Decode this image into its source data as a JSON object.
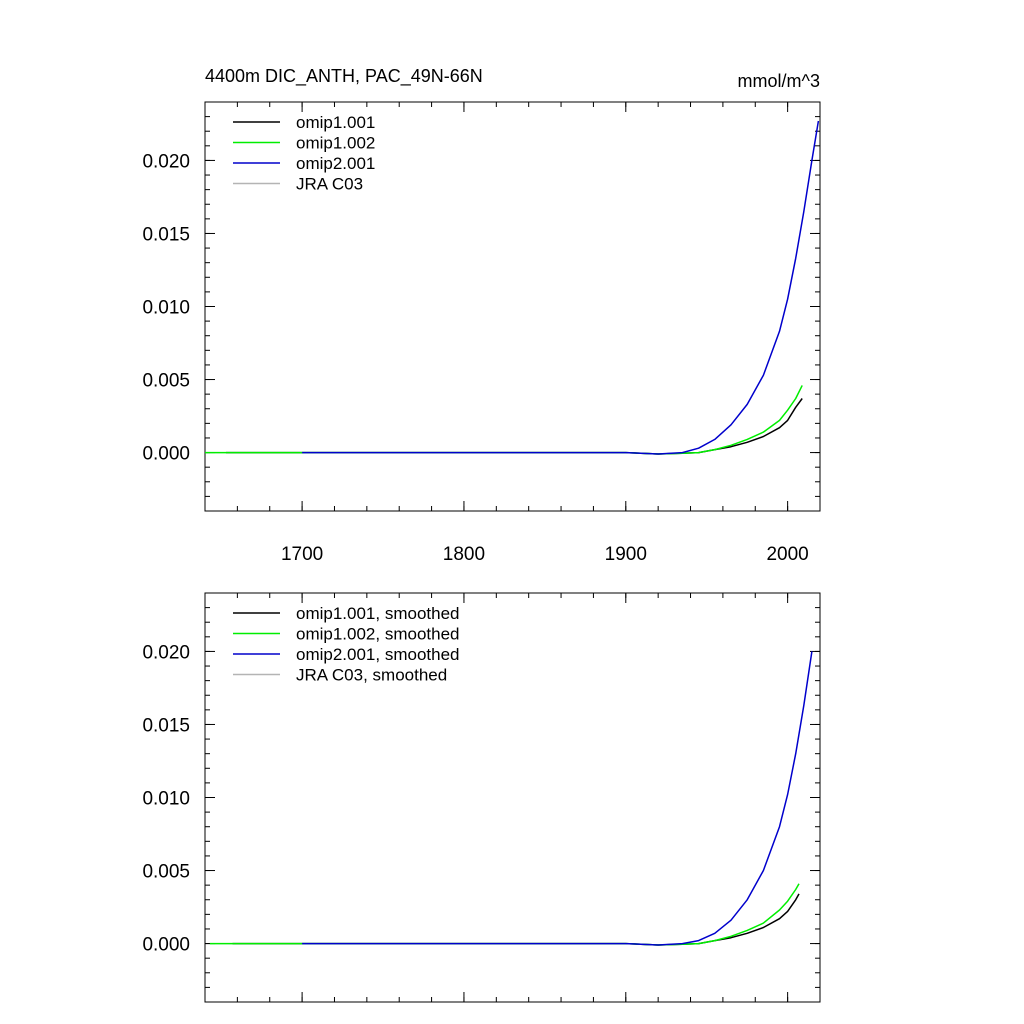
{
  "figure": {
    "title_left": "4400m DIC_ANTH, PAC_49N-66N",
    "title_right": "mmol/m^3"
  },
  "colors": {
    "omip1_001": "#000000",
    "omip1_002": "#00ee00",
    "omip2_001": "#0000cc",
    "jra_c03": "#b4b4b4"
  },
  "chart_data": [
    {
      "type": "line",
      "title": "4400m DIC_ANTH, PAC_49N-66N",
      "units": "mmol/m^3",
      "xlim": [
        1640,
        2020
      ],
      "ylim": [
        -0.004,
        0.024
      ],
      "x_ticks": [
        1700,
        1800,
        1900,
        2000
      ],
      "x_tick_labels": [
        "1700",
        "1800",
        "1900",
        "2000"
      ],
      "y_ticks": [
        0.0,
        0.005,
        0.01,
        0.015,
        0.02
      ],
      "y_tick_labels": [
        "0.000",
        "0.005",
        "0.010",
        "0.015",
        "0.020"
      ],
      "legend_position": "top-left",
      "series": [
        {
          "name": "omip1.001",
          "color_key": "omip1_001",
          "x": [
            1653,
            1700,
            1800,
            1900,
            1920,
            1935,
            1945,
            1955,
            1965,
            1975,
            1985,
            1995,
            2000,
            2005,
            2009
          ],
          "y": [
            0.0,
            0.0,
            0.0,
            0.0,
            -0.0001,
            -5e-05,
            0.0,
            0.0002,
            0.0004,
            0.0007,
            0.0011,
            0.0017,
            0.0022,
            0.0031,
            0.0037
          ]
        },
        {
          "name": "omip1.002",
          "color_key": "omip1_002",
          "x": [
            1640,
            1700,
            1800,
            1900,
            1920,
            1935,
            1945,
            1955,
            1965,
            1975,
            1985,
            1995,
            2000,
            2005,
            2009
          ],
          "y": [
            0.0,
            0.0,
            0.0,
            0.0,
            -0.0001,
            -5e-05,
            0.0,
            0.0002,
            0.0005,
            0.0009,
            0.0014,
            0.0022,
            0.0029,
            0.0037,
            0.0046
          ]
        },
        {
          "name": "omip2.001",
          "color_key": "omip2_001",
          "x": [
            1700,
            1800,
            1900,
            1920,
            1935,
            1945,
            1955,
            1965,
            1975,
            1985,
            1995,
            2000,
            2005,
            2010,
            2015,
            2019
          ],
          "y": [
            0.0,
            0.0,
            0.0,
            -0.0001,
            0.0,
            0.0003,
            0.0009,
            0.0019,
            0.0033,
            0.0053,
            0.0083,
            0.0105,
            0.0133,
            0.0165,
            0.02,
            0.0227
          ]
        },
        {
          "name": "JRA C03",
          "color_key": "jra_c03",
          "x": [],
          "y": []
        }
      ]
    },
    {
      "type": "line",
      "xlim": [
        1640,
        2020
      ],
      "ylim": [
        -0.004,
        0.024
      ],
      "x_ticks": [
        1700,
        1800,
        1900,
        2000
      ],
      "y_ticks": [
        0.0,
        0.005,
        0.01,
        0.015,
        0.02
      ],
      "y_tick_labels": [
        "0.000",
        "0.005",
        "0.010",
        "0.015",
        "0.020"
      ],
      "legend_position": "top-left",
      "series": [
        {
          "name": "omip1.001, smoothed",
          "color_key": "omip1_001",
          "x": [
            1657,
            1700,
            1800,
            1900,
            1920,
            1935,
            1945,
            1955,
            1965,
            1975,
            1985,
            1995,
            2000,
            2005,
            2007
          ],
          "y": [
            0.0,
            0.0,
            0.0,
            0.0,
            -0.0001,
            -5e-05,
            0.0,
            0.0002,
            0.0004,
            0.0007,
            0.0011,
            0.0017,
            0.0022,
            0.003,
            0.0034
          ]
        },
        {
          "name": "omip1.002, smoothed",
          "color_key": "omip1_002",
          "x": [
            1643,
            1700,
            1800,
            1900,
            1920,
            1935,
            1945,
            1955,
            1965,
            1975,
            1985,
            1995,
            2000,
            2005,
            2007
          ],
          "y": [
            0.0,
            0.0,
            0.0,
            0.0,
            -0.0001,
            -5e-05,
            0.0,
            0.0002,
            0.0005,
            0.0009,
            0.0014,
            0.0023,
            0.0029,
            0.0037,
            0.0041
          ]
        },
        {
          "name": "omip2.001, smoothed",
          "color_key": "omip2_001",
          "x": [
            1700,
            1800,
            1900,
            1920,
            1935,
            1945,
            1955,
            1965,
            1975,
            1985,
            1995,
            2000,
            2005,
            2010,
            2015
          ],
          "y": [
            0.0,
            0.0,
            0.0,
            -0.0001,
            0.0,
            0.0002,
            0.0007,
            0.0016,
            0.003,
            0.005,
            0.008,
            0.0102,
            0.013,
            0.0163,
            0.02
          ]
        },
        {
          "name": "JRA C03, smoothed",
          "color_key": "jra_c03",
          "x": [],
          "y": []
        }
      ]
    }
  ]
}
